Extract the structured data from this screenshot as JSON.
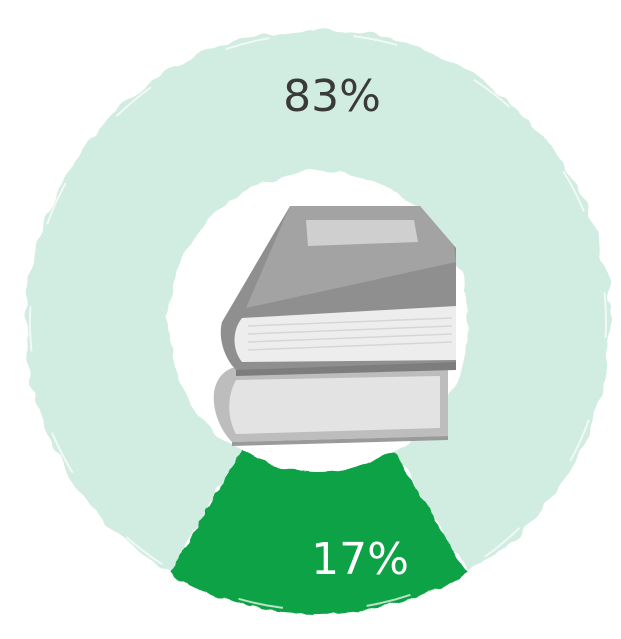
{
  "chart_data": {
    "type": "pie",
    "title": "",
    "categories": [
      "",
      ""
    ],
    "values": [
      83,
      17
    ],
    "labels": [
      "83%",
      "17%"
    ],
    "colors": [
      "#d1ece0",
      "#0aa244"
    ],
    "label_colors": [
      "#3a3a3a",
      "#ffffff"
    ],
    "style": "brush-stroke donut",
    "center_icon": "books-icon"
  }
}
